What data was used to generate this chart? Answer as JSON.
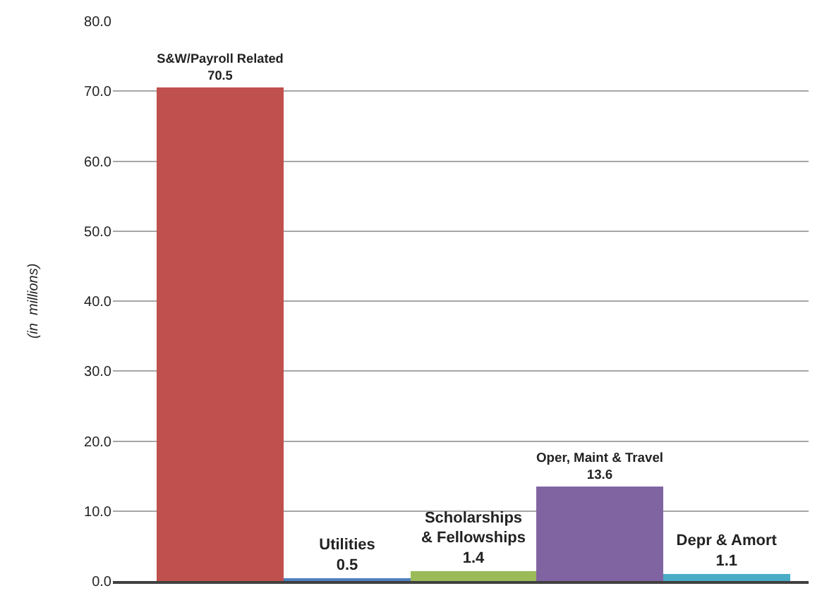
{
  "chart_data": {
    "type": "bar",
    "categories": [
      "S&W/Payroll Related",
      "Utilities",
      "Scholarships & Fellowships",
      "Oper, Maint & Travel",
      "Depr & Amort"
    ],
    "values": [
      70.5,
      0.5,
      1.4,
      13.6,
      1.1
    ],
    "colors": [
      "#c0504d",
      "#4f81bd",
      "#9bbb59",
      "#8064a2",
      "#4bacc6"
    ],
    "ylabel": "(in  millions)",
    "ylim": [
      0,
      80
    ],
    "yticks": [
      {
        "value": 0,
        "label": "0.0"
      },
      {
        "value": 10,
        "label": "10.0"
      },
      {
        "value": 20,
        "label": "20.0"
      },
      {
        "value": 30,
        "label": "30.0"
      },
      {
        "value": 40,
        "label": "40.0"
      },
      {
        "value": 50,
        "label": "50.0"
      },
      {
        "value": 60,
        "label": "60.0"
      },
      {
        "value": 70,
        "label": "70.0"
      },
      {
        "value": 80,
        "label": "80.0"
      }
    ],
    "grid": "y",
    "data_labels": true,
    "tick_labels": "y"
  }
}
